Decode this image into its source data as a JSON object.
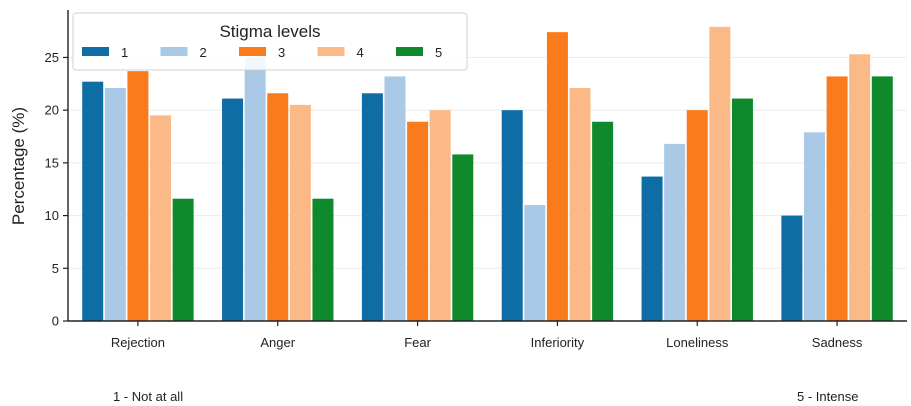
{
  "chart_data": {
    "type": "bar",
    "title": "",
    "xlabel": "",
    "ylabel": "Percentage (%)",
    "categories": [
      "Rejection",
      "Anger",
      "Fear",
      "Inferiority",
      "Loneliness",
      "Sadness"
    ],
    "ylim": [
      0,
      29.5
    ],
    "yticks": [
      0,
      5,
      10,
      15,
      20,
      25
    ],
    "grid": "horizontal",
    "legend": {
      "title": "Stigma levels",
      "placement": "top-left"
    },
    "series": [
      {
        "name": "1",
        "color": "#0f6da6",
        "values": [
          22.7,
          21.1,
          21.6,
          20.0,
          13.7,
          10.0
        ]
      },
      {
        "name": "2",
        "color": "#a9c9e6",
        "values": [
          22.1,
          25.0,
          23.2,
          11.0,
          16.8,
          17.9
        ]
      },
      {
        "name": "3",
        "color": "#f97b1c",
        "values": [
          23.7,
          21.6,
          18.9,
          27.4,
          20.0,
          23.2
        ]
      },
      {
        "name": "4",
        "color": "#fbb987",
        "values": [
          19.5,
          20.5,
          20.0,
          22.1,
          27.9,
          25.3
        ]
      },
      {
        "name": "5",
        "color": "#0e8a2d",
        "values": [
          11.6,
          11.6,
          15.8,
          18.9,
          21.1,
          23.2
        ]
      }
    ]
  },
  "notes": {
    "left": "1 - Not at all",
    "right": "5 - Intense"
  }
}
